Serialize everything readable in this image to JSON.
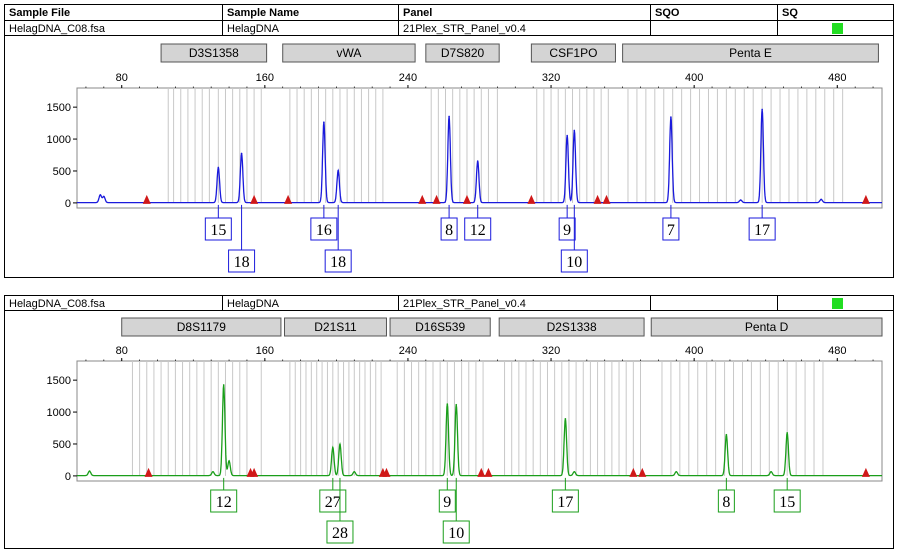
{
  "headers": {
    "sample_file": "Sample File",
    "sample_name": "Sample Name",
    "panel": "Panel",
    "sqo": "SQO",
    "sq": "SQ"
  },
  "colors": {
    "blue_trace": "#1a1adc",
    "green_trace": "#1a9e1a",
    "marker": "#d01818",
    "sq_ok": "#22dd22",
    "bin_line": "#c8c8c8",
    "locus_fill": "#d4d4d4"
  },
  "chart_data": [
    {
      "type": "line",
      "sample_file": "HelagDNA_C08.fsa",
      "sample_name": "HelagDNA",
      "panel": "21Plex_STR_Panel_v0.4",
      "sqo": "",
      "dye": "blue",
      "xlim": [
        55,
        505
      ],
      "ylim": [
        -80,
        1800
      ],
      "x_ticks": [
        80,
        160,
        240,
        320,
        400,
        480
      ],
      "y_ticks": [
        0,
        500,
        1000,
        1500
      ],
      "loci": [
        {
          "name": "D3S1358",
          "start": 102,
          "end": 161
        },
        {
          "name": "vWA",
          "start": 170,
          "end": 244
        },
        {
          "name": "D7S820",
          "start": 250,
          "end": 291
        },
        {
          "name": "CSF1PO",
          "start": 309,
          "end": 356
        },
        {
          "name": "Penta E",
          "start": 360,
          "end": 503
        }
      ],
      "peaks": [
        {
          "x": 68,
          "height": 120
        },
        {
          "x": 70,
          "height": 95
        },
        {
          "x": 134,
          "height": 550
        },
        {
          "x": 147,
          "height": 770
        },
        {
          "x": 193,
          "height": 1260
        },
        {
          "x": 201,
          "height": 500
        },
        {
          "x": 263,
          "height": 1350
        },
        {
          "x": 279,
          "height": 650
        },
        {
          "x": 329,
          "height": 1050
        },
        {
          "x": 333,
          "height": 1130
        },
        {
          "x": 387,
          "height": 1340
        },
        {
          "x": 438,
          "height": 1460
        },
        {
          "x": 426,
          "height": 40
        },
        {
          "x": 471,
          "height": 50
        }
      ],
      "markers": [
        94,
        154,
        173,
        248,
        256,
        273,
        309,
        346,
        351,
        496
      ],
      "alleles": [
        {
          "label": "15",
          "x": 134,
          "row": 1
        },
        {
          "label": "18",
          "x": 147,
          "row": 2
        },
        {
          "label": "16",
          "x": 193,
          "row": 1
        },
        {
          "label": "18",
          "x": 201,
          "row": 2
        },
        {
          "label": "8",
          "x": 263,
          "row": 1
        },
        {
          "label": "12",
          "x": 279,
          "row": 1
        },
        {
          "label": "9",
          "x": 329,
          "row": 1
        },
        {
          "label": "10",
          "x": 333,
          "row": 2
        },
        {
          "label": "7",
          "x": 387,
          "row": 1
        },
        {
          "label": "17",
          "x": 438,
          "row": 1
        }
      ],
      "bins": [
        106,
        109,
        113,
        117,
        121,
        125,
        129,
        134,
        138,
        142,
        146,
        150,
        154,
        158,
        174,
        178,
        182,
        186,
        190,
        194,
        198,
        202,
        206,
        210,
        214,
        218,
        222,
        226,
        253,
        257,
        261,
        265,
        269,
        273,
        277,
        281,
        285,
        290,
        312,
        316,
        320,
        324,
        328,
        332,
        336,
        340,
        344,
        348,
        352,
        363,
        368,
        373,
        378,
        383,
        388,
        393,
        398,
        403,
        408,
        413,
        418,
        423,
        428,
        433,
        438,
        443,
        448,
        453,
        458,
        463,
        468,
        473,
        478,
        483
      ]
    },
    {
      "type": "line",
      "sample_file": "HelagDNA_C08.fsa",
      "sample_name": "HelagDNA",
      "panel": "21Plex_STR_Panel_v0.4",
      "sqo": "",
      "dye": "green",
      "xlim": [
        55,
        505
      ],
      "ylim": [
        -80,
        1800
      ],
      "x_ticks": [
        80,
        160,
        240,
        320,
        400,
        480
      ],
      "y_ticks": [
        0,
        500,
        1000,
        1500
      ],
      "loci": [
        {
          "name": "D8S1179",
          "start": 80,
          "end": 169
        },
        {
          "name": "D21S11",
          "start": 171,
          "end": 228
        },
        {
          "name": "D16S539",
          "start": 230,
          "end": 286
        },
        {
          "name": "D2S1338",
          "start": 291,
          "end": 372
        },
        {
          "name": "Penta D",
          "start": 376,
          "end": 505
        }
      ],
      "peaks": [
        {
          "x": 62,
          "height": 70
        },
        {
          "x": 137,
          "height": 1420
        },
        {
          "x": 140,
          "height": 230
        },
        {
          "x": 131,
          "height": 60
        },
        {
          "x": 198,
          "height": 440
        },
        {
          "x": 202,
          "height": 490
        },
        {
          "x": 210,
          "height": 60
        },
        {
          "x": 262,
          "height": 1120
        },
        {
          "x": 267,
          "height": 1110
        },
        {
          "x": 328,
          "height": 890
        },
        {
          "x": 333,
          "height": 60
        },
        {
          "x": 390,
          "height": 60
        },
        {
          "x": 418,
          "height": 640
        },
        {
          "x": 443,
          "height": 60
        },
        {
          "x": 452,
          "height": 670
        }
      ],
      "markers": [
        95,
        152,
        154,
        226,
        228,
        281,
        285,
        366,
        371,
        496
      ],
      "alleles": [
        {
          "label": "12",
          "x": 137,
          "row": 1
        },
        {
          "label": "27",
          "x": 198,
          "row": 1
        },
        {
          "label": "28",
          "x": 202,
          "row": 2
        },
        {
          "label": "9",
          "x": 262,
          "row": 1
        },
        {
          "label": "10",
          "x": 267,
          "row": 2
        },
        {
          "label": "17",
          "x": 328,
          "row": 1
        },
        {
          "label": "8",
          "x": 418,
          "row": 1
        },
        {
          "label": "15",
          "x": 452,
          "row": 1
        }
      ],
      "bins": [
        86,
        90,
        94,
        98,
        102,
        106,
        110,
        114,
        118,
        122,
        126,
        130,
        134,
        138,
        142,
        146,
        150,
        158,
        174,
        177,
        180,
        183,
        186,
        189,
        192,
        195,
        198,
        201,
        204,
        207,
        210,
        213,
        216,
        219,
        222,
        225,
        234,
        238,
        242,
        246,
        250,
        254,
        258,
        262,
        266,
        270,
        274,
        278,
        282,
        294,
        298,
        302,
        306,
        310,
        314,
        318,
        322,
        326,
        330,
        334,
        338,
        342,
        346,
        350,
        354,
        358,
        362,
        366,
        370,
        382,
        387,
        392,
        397,
        402,
        407,
        412,
        417,
        422,
        427,
        432,
        437,
        442,
        447,
        452,
        457,
        462,
        467,
        472
      ]
    }
  ]
}
